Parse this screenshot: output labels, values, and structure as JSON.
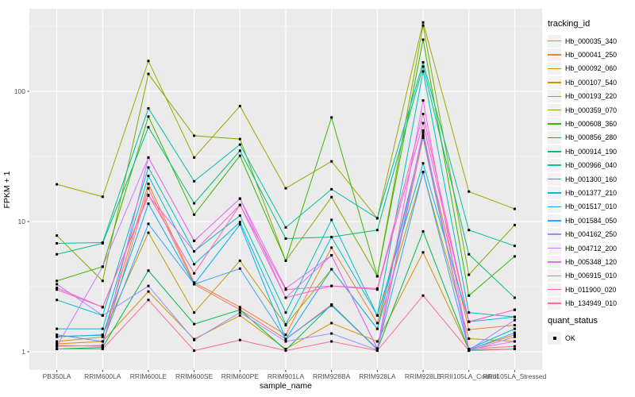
{
  "chart_data": {
    "type": "line",
    "title": "",
    "xlabel": "sample_name",
    "ylabel": "FPKM + 1",
    "y_scale": "log10",
    "ylim": [
      1,
      430
    ],
    "y_ticks": [
      1,
      10,
      100
    ],
    "y_tick_labels": [
      "1",
      "10",
      "100"
    ],
    "grid": true,
    "legend_position": "right",
    "panel_bg": "#EBEBEB",
    "grid_color": "#FFFFFF",
    "tick_color": "#333333",
    "tick_label_color": "#4D4D4D",
    "point_marker": "black-square",
    "point_color": "#000000",
    "categories": [
      "PB350LA",
      "RRIM600LA",
      "RRIM600LE",
      "RRIM600SE",
      "RRIM600PE",
      "RRIM901LA",
      "RRIM928BA",
      "RRIM928LA",
      "RRIM928LE",
      "RRII105LA_Control",
      "RRII105LA_Stressed"
    ],
    "series": [
      {
        "name": "Hb_000035_340",
        "color": "#F8766D",
        "values": [
          1.1,
          1.12,
          18,
          3.3,
          2.1,
          1.25,
          2.3,
          1.05,
          44,
          1.05,
          1.1
        ]
      },
      {
        "name": "Hb_000041_250",
        "color": "#EA8331",
        "values": [
          1.2,
          1.3,
          19.5,
          3.4,
          2.2,
          1.35,
          6.3,
          1.66,
          45,
          1.48,
          1.6
        ]
      },
      {
        "name": "Hb_000092_060",
        "color": "#D89000",
        "values": [
          1.15,
          1.2,
          2.9,
          1.25,
          1.9,
          1.05,
          1.66,
          1.2,
          5.8,
          1.04,
          1.35
        ]
      },
      {
        "name": "Hb_000107_540",
        "color": "#C09B00",
        "values": [
          1.3,
          1.35,
          8.2,
          2.0,
          5.0,
          1.6,
          4.3,
          1.5,
          24,
          1.26,
          1.2
        ]
      },
      {
        "name": "Hb_000193_220",
        "color": "#A3A500",
        "values": [
          19.3,
          15.5,
          171,
          31,
          77,
          18,
          29,
          10.6,
          338,
          17,
          12.5
        ]
      },
      {
        "name": "Hb_000359_070",
        "color": "#7CAE00",
        "values": [
          7.8,
          3.5,
          136,
          45.6,
          43,
          5.0,
          15.4,
          3.8,
          320,
          3.9,
          9.4
        ]
      },
      {
        "name": "Hb_000608_360",
        "color": "#39B600",
        "values": [
          3.5,
          4.5,
          64,
          11.3,
          32,
          5.0,
          63,
          3.8,
          249,
          2.7,
          5.4
        ]
      },
      {
        "name": "Hb_000856_280",
        "color": "#00BB4E",
        "values": [
          1.05,
          1.08,
          4.2,
          1.63,
          2.1,
          1.03,
          2.3,
          1.04,
          8.4,
          1.03,
          1.05
        ]
      },
      {
        "name": "Hb_000914_190",
        "color": "#00BF7D",
        "values": [
          5.6,
          6.8,
          53,
          13.8,
          35,
          7.4,
          7.6,
          8.6,
          155,
          5.6,
          2.6
        ]
      },
      {
        "name": "Hb_000966_040",
        "color": "#00C1A3",
        "values": [
          6.8,
          6.9,
          74,
          20.4,
          39,
          9.0,
          17.7,
          10.6,
          167,
          8.6,
          6.5
        ]
      },
      {
        "name": "Hb_001300_160",
        "color": "#00BFC4",
        "values": [
          2.5,
          1.9,
          26,
          5.9,
          11.1,
          2.0,
          10.3,
          1.9,
          142,
          2.0,
          1.85
        ]
      },
      {
        "name": "Hb_001377_210",
        "color": "#00BADE",
        "values": [
          1.5,
          1.5,
          22.4,
          4.7,
          9.9,
          1.62,
          7.6,
          1.9,
          28,
          1.7,
          1.85
        ]
      },
      {
        "name": "Hb_001517_010",
        "color": "#00B0F6",
        "values": [
          1.31,
          1.34,
          13.7,
          3.3,
          9.5,
          1.25,
          4.3,
          1.5,
          46,
          1.05,
          1.5
        ]
      },
      {
        "name": "Hb_001584_050",
        "color": "#35A2FF",
        "values": [
          1.35,
          1.2,
          9.6,
          3.3,
          4.35,
          1.25,
          2.26,
          1.05,
          24,
          1.03,
          1.4
        ]
      },
      {
        "name": "Hb_004162_250",
        "color": "#9590FF",
        "values": [
          3.3,
          1.9,
          3.2,
          1.23,
          2.0,
          1.2,
          1.38,
          1.03,
          48,
          1.03,
          1.75
        ]
      },
      {
        "name": "Hb_004712_200",
        "color": "#C77CFF",
        "values": [
          1.1,
          4.5,
          31,
          7.1,
          15,
          2.6,
          5.5,
          1.05,
          50,
          1.02,
          1.3
        ]
      },
      {
        "name": "Hb_005348_120",
        "color": "#E76BF3",
        "values": [
          1.12,
          1.1,
          31,
          7.1,
          15,
          3.06,
          5.5,
          1.06,
          85,
          1.04,
          1.2
        ]
      },
      {
        "name": "Hb_006915_010",
        "color": "#FA62DB",
        "values": [
          3.0,
          2.2,
          15.8,
          5.9,
          13.4,
          2.6,
          3.2,
          3.06,
          67,
          1.7,
          2.1
        ]
      },
      {
        "name": "Hb_011900_020",
        "color": "#FF62BC",
        "values": [
          3.1,
          2.2,
          16,
          4.0,
          13.4,
          3.0,
          3.2,
          3.0,
          57,
          1.7,
          2.1
        ]
      },
      {
        "name": "Hb_134949_010",
        "color": "#FF6A98",
        "values": [
          1.05,
          1.05,
          2.5,
          1.02,
          1.23,
          1.02,
          1.2,
          1.02,
          2.7,
          1.02,
          1.05
        ]
      }
    ],
    "legends": {
      "tracking": {
        "title": "tracking_id"
      },
      "quant": {
        "title": "quant_status",
        "items": [
          {
            "label": "OK",
            "marker": "black-square"
          }
        ]
      }
    }
  }
}
